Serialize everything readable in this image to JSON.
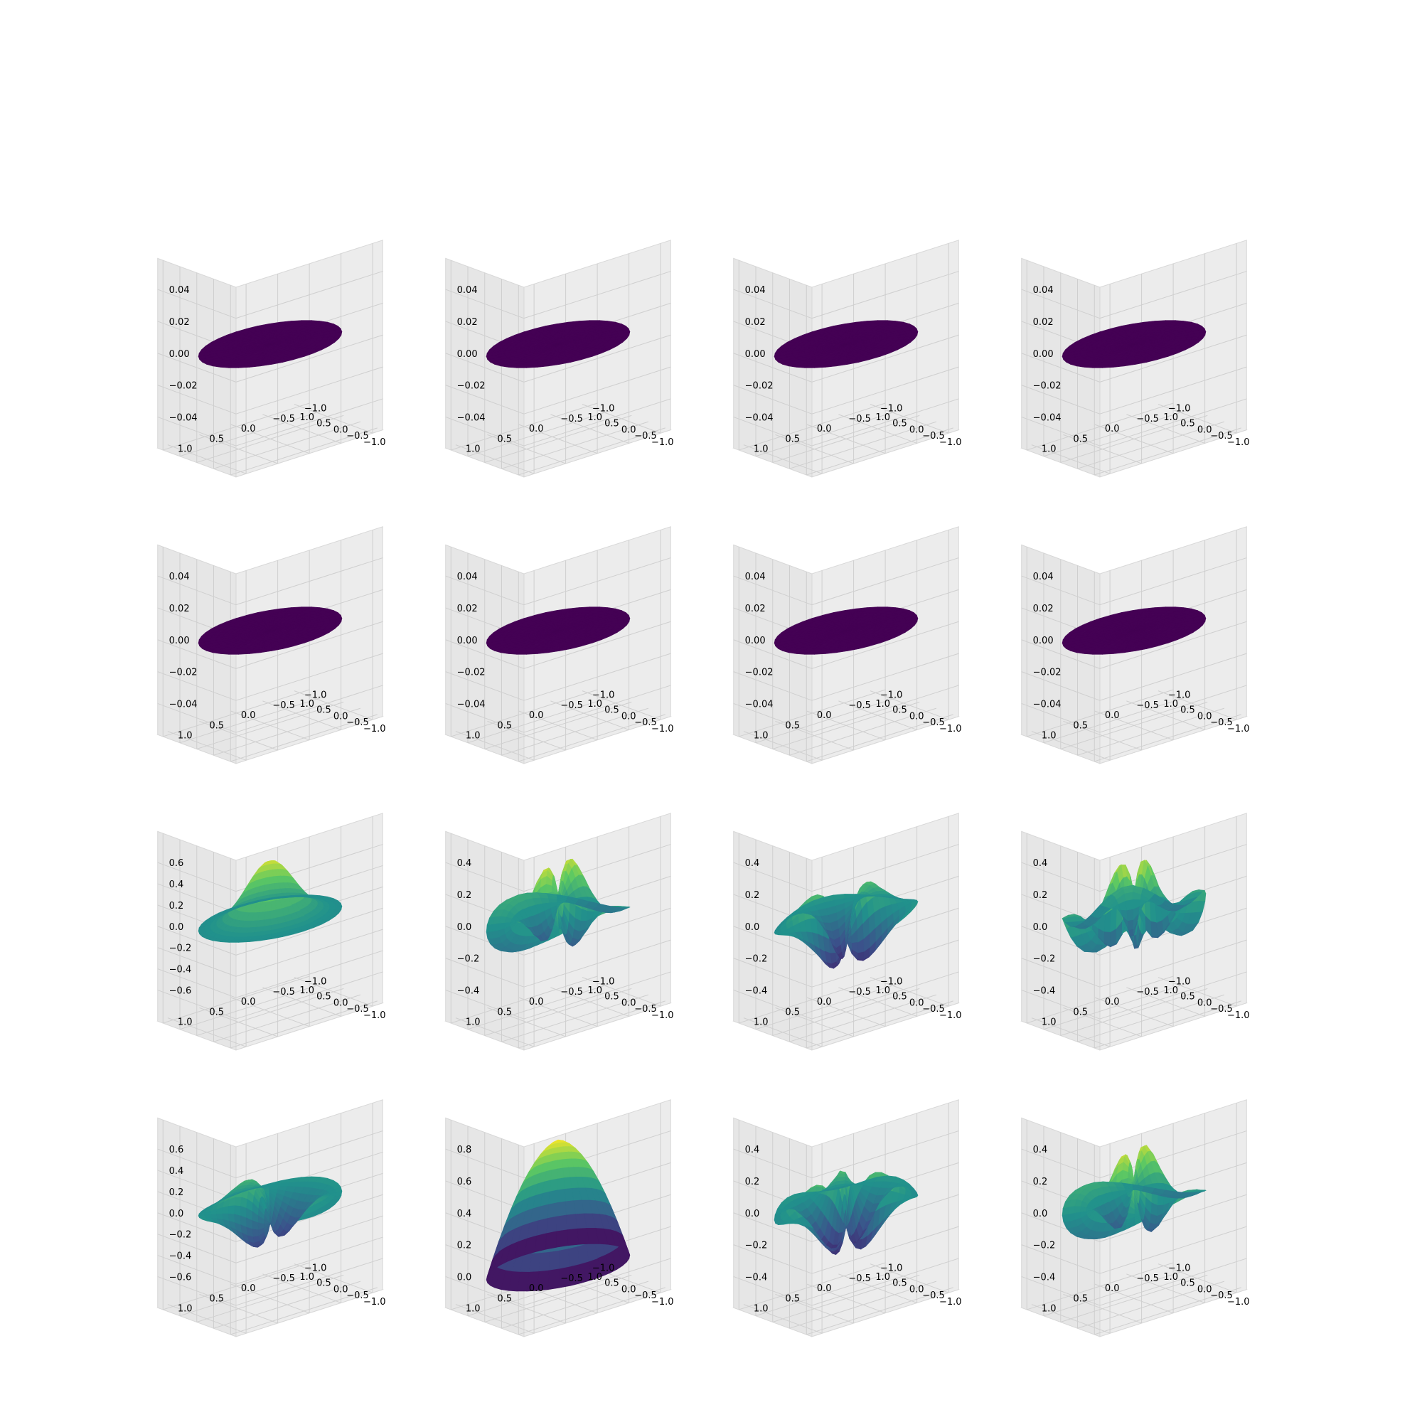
{
  "figure": {
    "rows": 4,
    "cols": 4,
    "colormap": "viridis"
  },
  "colormap_stops": [
    "#440154",
    "#3b528b",
    "#21918c",
    "#5ec962",
    "#fde725"
  ],
  "x_ticks": [
    "−1.0",
    "−0.5",
    "0.0",
    "0.5",
    "1.0"
  ],
  "y_ticks": [
    "−1.0",
    "−0.5",
    "0.0",
    "0.5",
    "1.0"
  ],
  "chart_data": [
    {
      "type": "surface3d",
      "row": 0,
      "col": 0,
      "shape": "flat",
      "xlim": [
        -1,
        1
      ],
      "ylim": [
        -1,
        1
      ],
      "z_ticks": [
        "−0.04",
        "−0.02",
        "0.00",
        "0.02",
        "0.04"
      ],
      "zlim": [
        -0.05,
        0.05
      ]
    },
    {
      "type": "surface3d",
      "row": 0,
      "col": 1,
      "shape": "flat",
      "xlim": [
        -1,
        1
      ],
      "ylim": [
        -1,
        1
      ],
      "z_ticks": [
        "−0.04",
        "−0.02",
        "0.00",
        "0.02",
        "0.04"
      ],
      "zlim": [
        -0.05,
        0.05
      ]
    },
    {
      "type": "surface3d",
      "row": 0,
      "col": 2,
      "shape": "flat",
      "xlim": [
        -1,
        1
      ],
      "ylim": [
        -1,
        1
      ],
      "z_ticks": [
        "−0.04",
        "−0.02",
        "0.00",
        "0.02",
        "0.04"
      ],
      "zlim": [
        -0.05,
        0.05
      ]
    },
    {
      "type": "surface3d",
      "row": 0,
      "col": 3,
      "shape": "flat",
      "xlim": [
        -1,
        1
      ],
      "ylim": [
        -1,
        1
      ],
      "z_ticks": [
        "−0.04",
        "−0.02",
        "0.00",
        "0.02",
        "0.04"
      ],
      "zlim": [
        -0.05,
        0.05
      ]
    },
    {
      "type": "surface3d",
      "row": 1,
      "col": 0,
      "shape": "flat",
      "xlim": [
        -1,
        1
      ],
      "ylim": [
        -1,
        1
      ],
      "z_ticks": [
        "−0.04",
        "−0.02",
        "0.00",
        "0.02",
        "0.04"
      ],
      "zlim": [
        -0.05,
        0.05
      ]
    },
    {
      "type": "surface3d",
      "row": 1,
      "col": 1,
      "shape": "flat",
      "xlim": [
        -1,
        1
      ],
      "ylim": [
        -1,
        1
      ],
      "z_ticks": [
        "−0.04",
        "−0.02",
        "0.00",
        "0.02",
        "0.04"
      ],
      "zlim": [
        -0.05,
        0.05
      ]
    },
    {
      "type": "surface3d",
      "row": 1,
      "col": 2,
      "shape": "flat",
      "xlim": [
        -1,
        1
      ],
      "ylim": [
        -1,
        1
      ],
      "z_ticks": [
        "−0.04",
        "−0.02",
        "0.00",
        "0.02",
        "0.04"
      ],
      "zlim": [
        -0.05,
        0.05
      ]
    },
    {
      "type": "surface3d",
      "row": 1,
      "col": 3,
      "shape": "flat",
      "xlim": [
        -1,
        1
      ],
      "ylim": [
        -1,
        1
      ],
      "z_ticks": [
        "−0.04",
        "−0.02",
        "0.00",
        "0.02",
        "0.04"
      ],
      "zlim": [
        -0.05,
        0.05
      ]
    },
    {
      "type": "surface3d",
      "row": 2,
      "col": 0,
      "shape": "bump",
      "xlim": [
        -1,
        1
      ],
      "ylim": [
        -1,
        1
      ],
      "z_ticks": [
        "−0.6",
        "−0.4",
        "−0.2",
        "0.0",
        "0.2",
        "0.4",
        "0.6"
      ],
      "zlim": [
        -0.6,
        0.6
      ]
    },
    {
      "type": "surface3d",
      "row": 2,
      "col": 1,
      "shape": "wave",
      "xlim": [
        -1,
        1
      ],
      "ylim": [
        -1,
        1
      ],
      "z_ticks": [
        "−0.4",
        "−0.2",
        "0.0",
        "0.2",
        "0.4"
      ],
      "zlim": [
        -0.5,
        0.5
      ]
    },
    {
      "type": "surface3d",
      "row": 2,
      "col": 2,
      "shape": "wave",
      "xlim": [
        -1,
        1
      ],
      "ylim": [
        -1,
        1
      ],
      "z_ticks": [
        "−0.4",
        "−0.2",
        "0.0",
        "0.2",
        "0.4"
      ],
      "zlim": [
        -0.5,
        0.5
      ]
    },
    {
      "type": "surface3d",
      "row": 2,
      "col": 3,
      "shape": "wave",
      "xlim": [
        -1,
        1
      ],
      "ylim": [
        -1,
        1
      ],
      "z_ticks": [
        "−0.4",
        "−0.2",
        "0.0",
        "0.2",
        "0.4"
      ],
      "zlim": [
        -0.5,
        0.5
      ]
    },
    {
      "type": "surface3d",
      "row": 3,
      "col": 0,
      "shape": "wave",
      "xlim": [
        -1,
        1
      ],
      "ylim": [
        -1,
        1
      ],
      "z_ticks": [
        "−0.6",
        "−0.4",
        "−0.2",
        "0.0",
        "0.2",
        "0.4",
        "0.6"
      ],
      "zlim": [
        -0.6,
        0.6
      ]
    },
    {
      "type": "surface3d",
      "row": 3,
      "col": 1,
      "shape": "cone",
      "xlim": [
        -1,
        1
      ],
      "ylim": [
        -1,
        1
      ],
      "z_ticks": [
        "0.0",
        "0.2",
        "0.4",
        "0.6",
        "0.8"
      ],
      "zlim": [
        0.0,
        0.95
      ]
    },
    {
      "type": "surface3d",
      "row": 3,
      "col": 2,
      "shape": "wave",
      "xlim": [
        -1,
        1
      ],
      "ylim": [
        -1,
        1
      ],
      "z_ticks": [
        "−0.4",
        "−0.2",
        "0.0",
        "0.2",
        "0.4"
      ],
      "zlim": [
        -0.5,
        0.5
      ]
    },
    {
      "type": "surface3d",
      "row": 3,
      "col": 3,
      "shape": "wave",
      "xlim": [
        -1,
        1
      ],
      "ylim": [
        -1,
        1
      ],
      "z_ticks": [
        "−0.4",
        "−0.2",
        "0.0",
        "0.2",
        "0.4"
      ],
      "zlim": [
        -0.5,
        0.5
      ]
    }
  ]
}
